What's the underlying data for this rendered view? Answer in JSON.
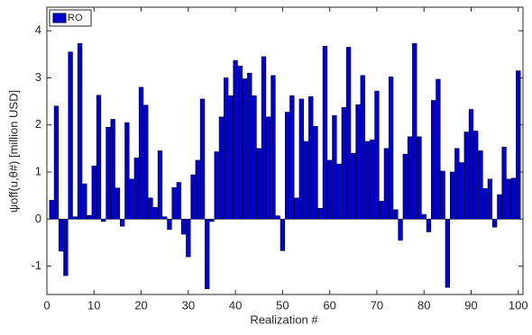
{
  "chart_data": {
    "type": "bar",
    "color": "#0000d0",
    "edge_color": "#000033",
    "x_label": "Realization #",
    "y_label": "ψoff(u,θ#)   [million USD]",
    "legend": "upper left",
    "series": [
      {
        "name": "RO",
        "color": "#0000d0",
        "values": [
          0.4,
          2.4,
          -0.68,
          -1.2,
          3.55,
          0.05,
          3.73,
          0.75,
          0.08,
          1.13,
          2.63,
          -0.05,
          1.95,
          2.12,
          0.66,
          -0.15,
          2.05,
          0.85,
          1.3,
          2.8,
          2.42,
          0.45,
          0.25,
          1.45,
          0.05,
          -0.22,
          0.67,
          0.78,
          -0.32,
          -0.8,
          0.94,
          1.25,
          2.55,
          -1.48,
          -0.05,
          1.43,
          2.17,
          3.0,
          2.62,
          3.37,
          3.25,
          2.98,
          3.1,
          2.62,
          1.5,
          3.45,
          2.17,
          3.05,
          0.07,
          -0.67,
          2.27,
          2.62,
          0.45,
          2.55,
          1.65,
          2.6,
          1.97,
          0.23,
          3.67,
          1.25,
          2.2,
          1.17,
          2.37,
          3.65,
          1.4,
          2.43,
          3.05,
          1.65,
          1.68,
          2.72,
          0.38,
          1.5,
          3.02,
          0.2,
          -0.45,
          1.38,
          1.75,
          3.73,
          1.75,
          0.1,
          -0.27,
          2.52,
          2.97,
          1.02,
          -1.45,
          1.0,
          1.5,
          1.2,
          1.85,
          2.33,
          1.87,
          1.45,
          0.65,
          0.85,
          -0.17,
          0.52,
          1.53,
          0.85,
          0.87,
          3.15
        ]
      }
    ],
    "x": [
      1,
      2,
      3,
      4,
      5,
      6,
      7,
      8,
      9,
      10,
      11,
      12,
      13,
      14,
      15,
      16,
      17,
      18,
      19,
      20,
      21,
      22,
      23,
      24,
      25,
      26,
      27,
      28,
      29,
      30,
      31,
      32,
      33,
      34,
      35,
      36,
      37,
      38,
      39,
      40,
      41,
      42,
      43,
      44,
      45,
      46,
      47,
      48,
      49,
      50,
      51,
      52,
      53,
      54,
      55,
      56,
      57,
      58,
      59,
      60,
      61,
      62,
      63,
      64,
      65,
      66,
      67,
      68,
      69,
      70,
      71,
      72,
      73,
      74,
      75,
      76,
      77,
      78,
      79,
      80,
      81,
      82,
      83,
      84,
      85,
      86,
      87,
      88,
      89,
      90,
      91,
      92,
      93,
      94,
      95,
      96,
      97,
      98,
      99,
      100
    ],
    "xlim": [
      0,
      101
    ],
    "xticks": [
      0,
      10,
      20,
      30,
      40,
      50,
      60,
      70,
      80,
      90,
      100
    ],
    "ylim": [
      -1.6,
      4.5
    ],
    "yticks": [
      -1,
      0,
      1,
      2,
      3,
      4
    ]
  }
}
